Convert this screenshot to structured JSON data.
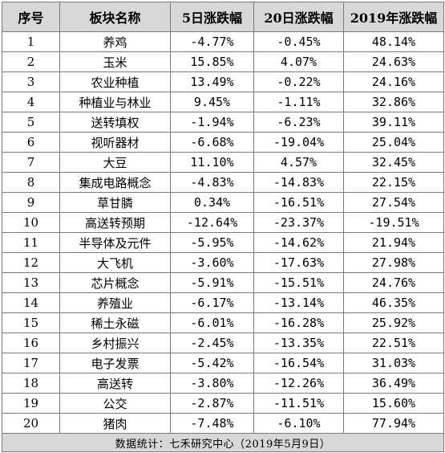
{
  "table": {
    "headers": [
      "序号",
      "板块名称",
      "5日涨跌幅",
      "20日涨跌幅",
      "2019年涨跌幅"
    ],
    "rows": [
      [
        "1",
        "养鸡",
        "-4.77%",
        "-0.45%",
        "48.14%"
      ],
      [
        "2",
        "玉米",
        "15.85%",
        "4.07%",
        "24.63%"
      ],
      [
        "3",
        "农业种植",
        "13.49%",
        "-0.22%",
        "24.16%"
      ],
      [
        "4",
        "种植业与林业",
        "9.45%",
        "-1.11%",
        "32.86%"
      ],
      [
        "5",
        "送转填权",
        "-1.94%",
        "-6.23%",
        "39.11%"
      ],
      [
        "6",
        "视听器材",
        "-6.68%",
        "-19.04%",
        "25.04%"
      ],
      [
        "7",
        "大豆",
        "11.10%",
        "4.57%",
        "32.45%"
      ],
      [
        "8",
        "集成电路概念",
        "-4.83%",
        "-14.83%",
        "22.15%"
      ],
      [
        "9",
        "草甘膦",
        "0.34%",
        "-16.51%",
        "27.54%"
      ],
      [
        "10",
        "高送转预期",
        "-12.64%",
        "-23.37%",
        "-19.51%"
      ],
      [
        "11",
        "半导体及元件",
        "-5.95%",
        "-14.62%",
        "21.94%"
      ],
      [
        "12",
        "大飞机",
        "-3.60%",
        "-17.63%",
        "27.98%"
      ],
      [
        "13",
        "芯片概念",
        "-5.91%",
        "-15.51%",
        "24.76%"
      ],
      [
        "14",
        "养殖业",
        "-6.17%",
        "-13.14%",
        "46.35%"
      ],
      [
        "15",
        "稀土永磁",
        "-6.01%",
        "-16.28%",
        "25.92%"
      ],
      [
        "16",
        "乡村振兴",
        "-2.45%",
        "-13.35%",
        "22.51%"
      ],
      [
        "17",
        "电子发票",
        "-5.42%",
        "-16.54%",
        "31.03%"
      ],
      [
        "18",
        "高送转",
        "-3.80%",
        "-12.26%",
        "36.49%"
      ],
      [
        "19",
        "公交",
        "-2.87%",
        "-11.51%",
        "15.60%"
      ],
      [
        "20",
        "猪肉",
        "-7.48%",
        "-6.10%",
        "77.94%"
      ]
    ],
    "footer": "数据统计：七禾研究中心（2019年5月9日）"
  },
  "colors": {
    "header_bg": "#d8d8d8",
    "footer_bg": "#d8d8d8",
    "border": "#7a7a7a",
    "text": "#000000"
  }
}
